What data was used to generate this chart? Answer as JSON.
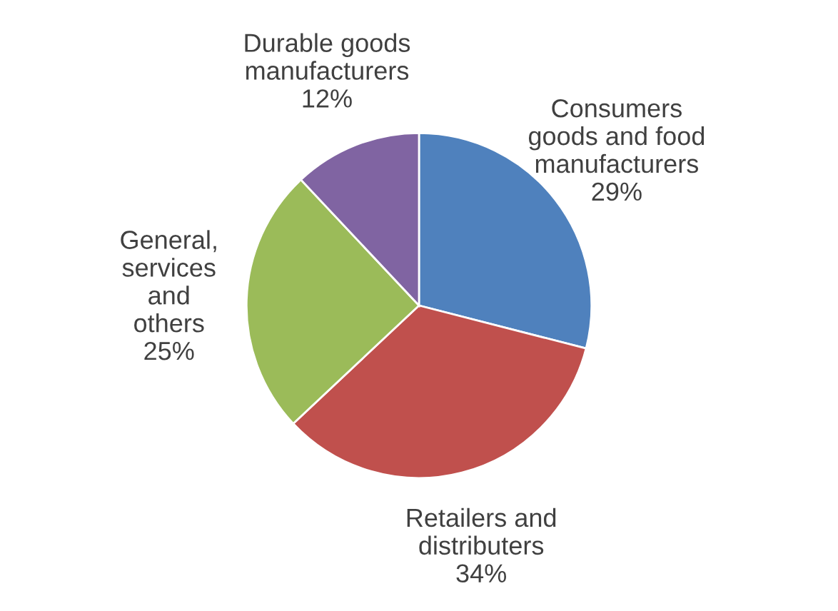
{
  "chart_data": {
    "type": "pie",
    "categories": [
      "Consumers\ngoods and food\nmanufacturers",
      "Retailers and\ndistributers",
      "General,\nservices\nand\nothers",
      "Durable goods\nmanufacturers"
    ],
    "values": [
      29,
      34,
      25,
      12
    ],
    "value_labels": [
      "29%",
      "34%",
      "25%",
      "12%"
    ],
    "colors": [
      "#4f81bd",
      "#c0504d",
      "#9bbb59",
      "#8064a2"
    ]
  }
}
